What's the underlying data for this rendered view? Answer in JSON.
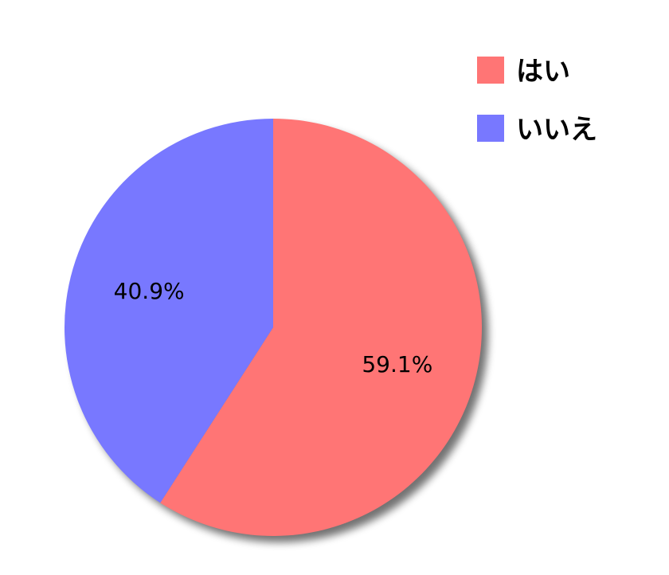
{
  "chart_data": {
    "type": "pie",
    "categories": [
      "はい",
      "いいえ"
    ],
    "values": [
      59.1,
      40.9
    ],
    "data_labels": [
      "59.1%",
      "40.9%"
    ],
    "colors": [
      "#FF7575",
      "#7878FF"
    ],
    "start_angle": "top",
    "direction": "clockwise",
    "legend_placement": "top-right",
    "shadow": true
  }
}
